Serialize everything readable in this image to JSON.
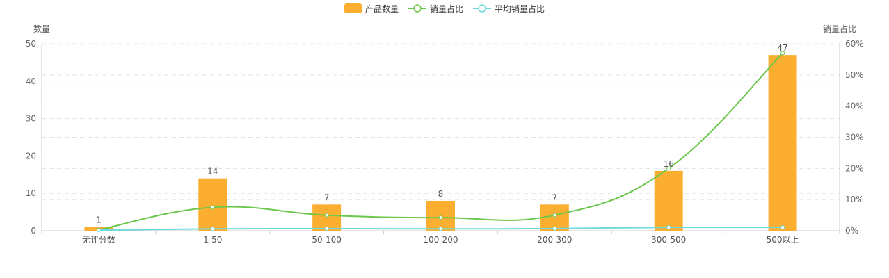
{
  "legend": [
    {
      "label": "产品数量",
      "kind": "bar",
      "color": "#FBAE2F"
    },
    {
      "label": "销量占比",
      "kind": "line",
      "color": "#6CC84D"
    },
    {
      "label": "平均销量占比",
      "kind": "line",
      "color": "#6ED9DE"
    }
  ],
  "chart_data": {
    "type": "bar",
    "categories": [
      "无评分数",
      "1-50",
      "50-100",
      "100-200",
      "200-300",
      "300-500",
      "500以上"
    ],
    "ylabel_left": "数量",
    "ylabel_right": "销量占比",
    "ylim_left": [
      0,
      50
    ],
    "yticks_left": [
      "0",
      "10",
      "20",
      "30",
      "40",
      "50"
    ],
    "ylim_right": [
      0,
      60
    ],
    "yticks_right": [
      "0%",
      "10%",
      "20%",
      "30%",
      "40%",
      "50%",
      "60%"
    ],
    "grid": true,
    "legend_position": "top-center",
    "series": [
      {
        "name": "产品数量",
        "type": "bar",
        "axis": "left",
        "color": "#FBAE2F",
        "values": [
          1,
          14,
          7,
          8,
          7,
          16,
          47
        ],
        "labels": [
          "1",
          "14",
          "7",
          "8",
          "7",
          "16",
          "47"
        ]
      },
      {
        "name": "销量占比",
        "type": "line",
        "axis": "right",
        "color": "#6CC84D",
        "values": [
          0.3,
          7.5,
          5,
          4.2,
          5,
          20,
          57
        ]
      },
      {
        "name": "平均销量占比",
        "type": "line",
        "axis": "right",
        "color": "#6ED9DE",
        "values": [
          0.2,
          0.6,
          0.7,
          0.6,
          0.7,
          1.1,
          1.1
        ]
      }
    ]
  }
}
